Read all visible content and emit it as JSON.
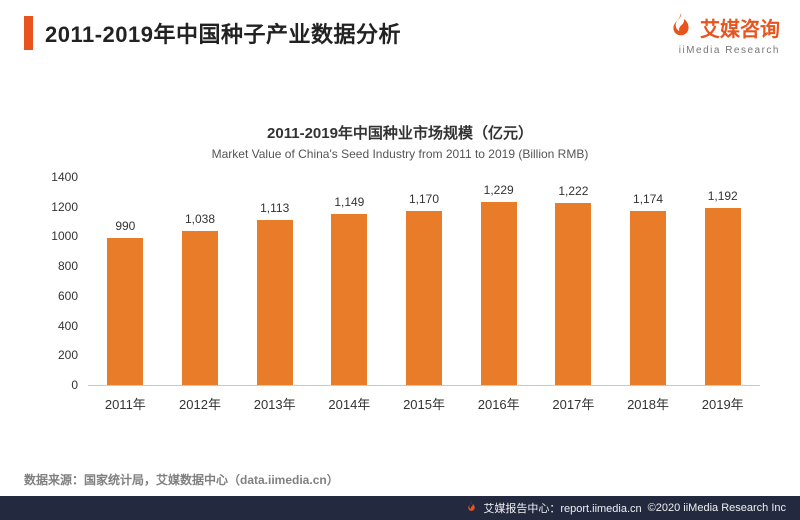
{
  "header": {
    "title": "2011-2019年中国种子产业数据分析",
    "logo_brand": "艾媒咨询",
    "logo_subtitle": "iiMedia Research"
  },
  "chart_data": {
    "type": "bar",
    "title": "2011-2019年中国种业市场规模（亿元）",
    "subtitle": "Market Value of China's Seed Industry from 2011 to 2019 (Billion RMB)",
    "categories": [
      "2011年",
      "2012年",
      "2013年",
      "2014年",
      "2015年",
      "2016年",
      "2017年",
      "2018年",
      "2019年"
    ],
    "values": [
      990,
      1038,
      1113,
      1149,
      1170,
      1229,
      1222,
      1174,
      1192
    ],
    "value_labels": [
      "990",
      "1,038",
      "1,113",
      "1,149",
      "1,170",
      "1,229",
      "1,222",
      "1,174",
      "1,192"
    ],
    "ylim": [
      0,
      1400
    ],
    "ytick_interval": 200,
    "xlabel": "",
    "ylabel": "",
    "grid": false,
    "legend": "none"
  },
  "footer": {
    "source": "数据来源：国家统计局，艾媒数据中心（data.iimedia.cn）",
    "report_text": "艾媒报告中心：report.iimedia.cn",
    "copyright": "©2020  iiMedia Research Inc"
  },
  "colors": {
    "accent": "#E8541E",
    "bar": "#E87C28",
    "footer_bg": "#232A40"
  }
}
